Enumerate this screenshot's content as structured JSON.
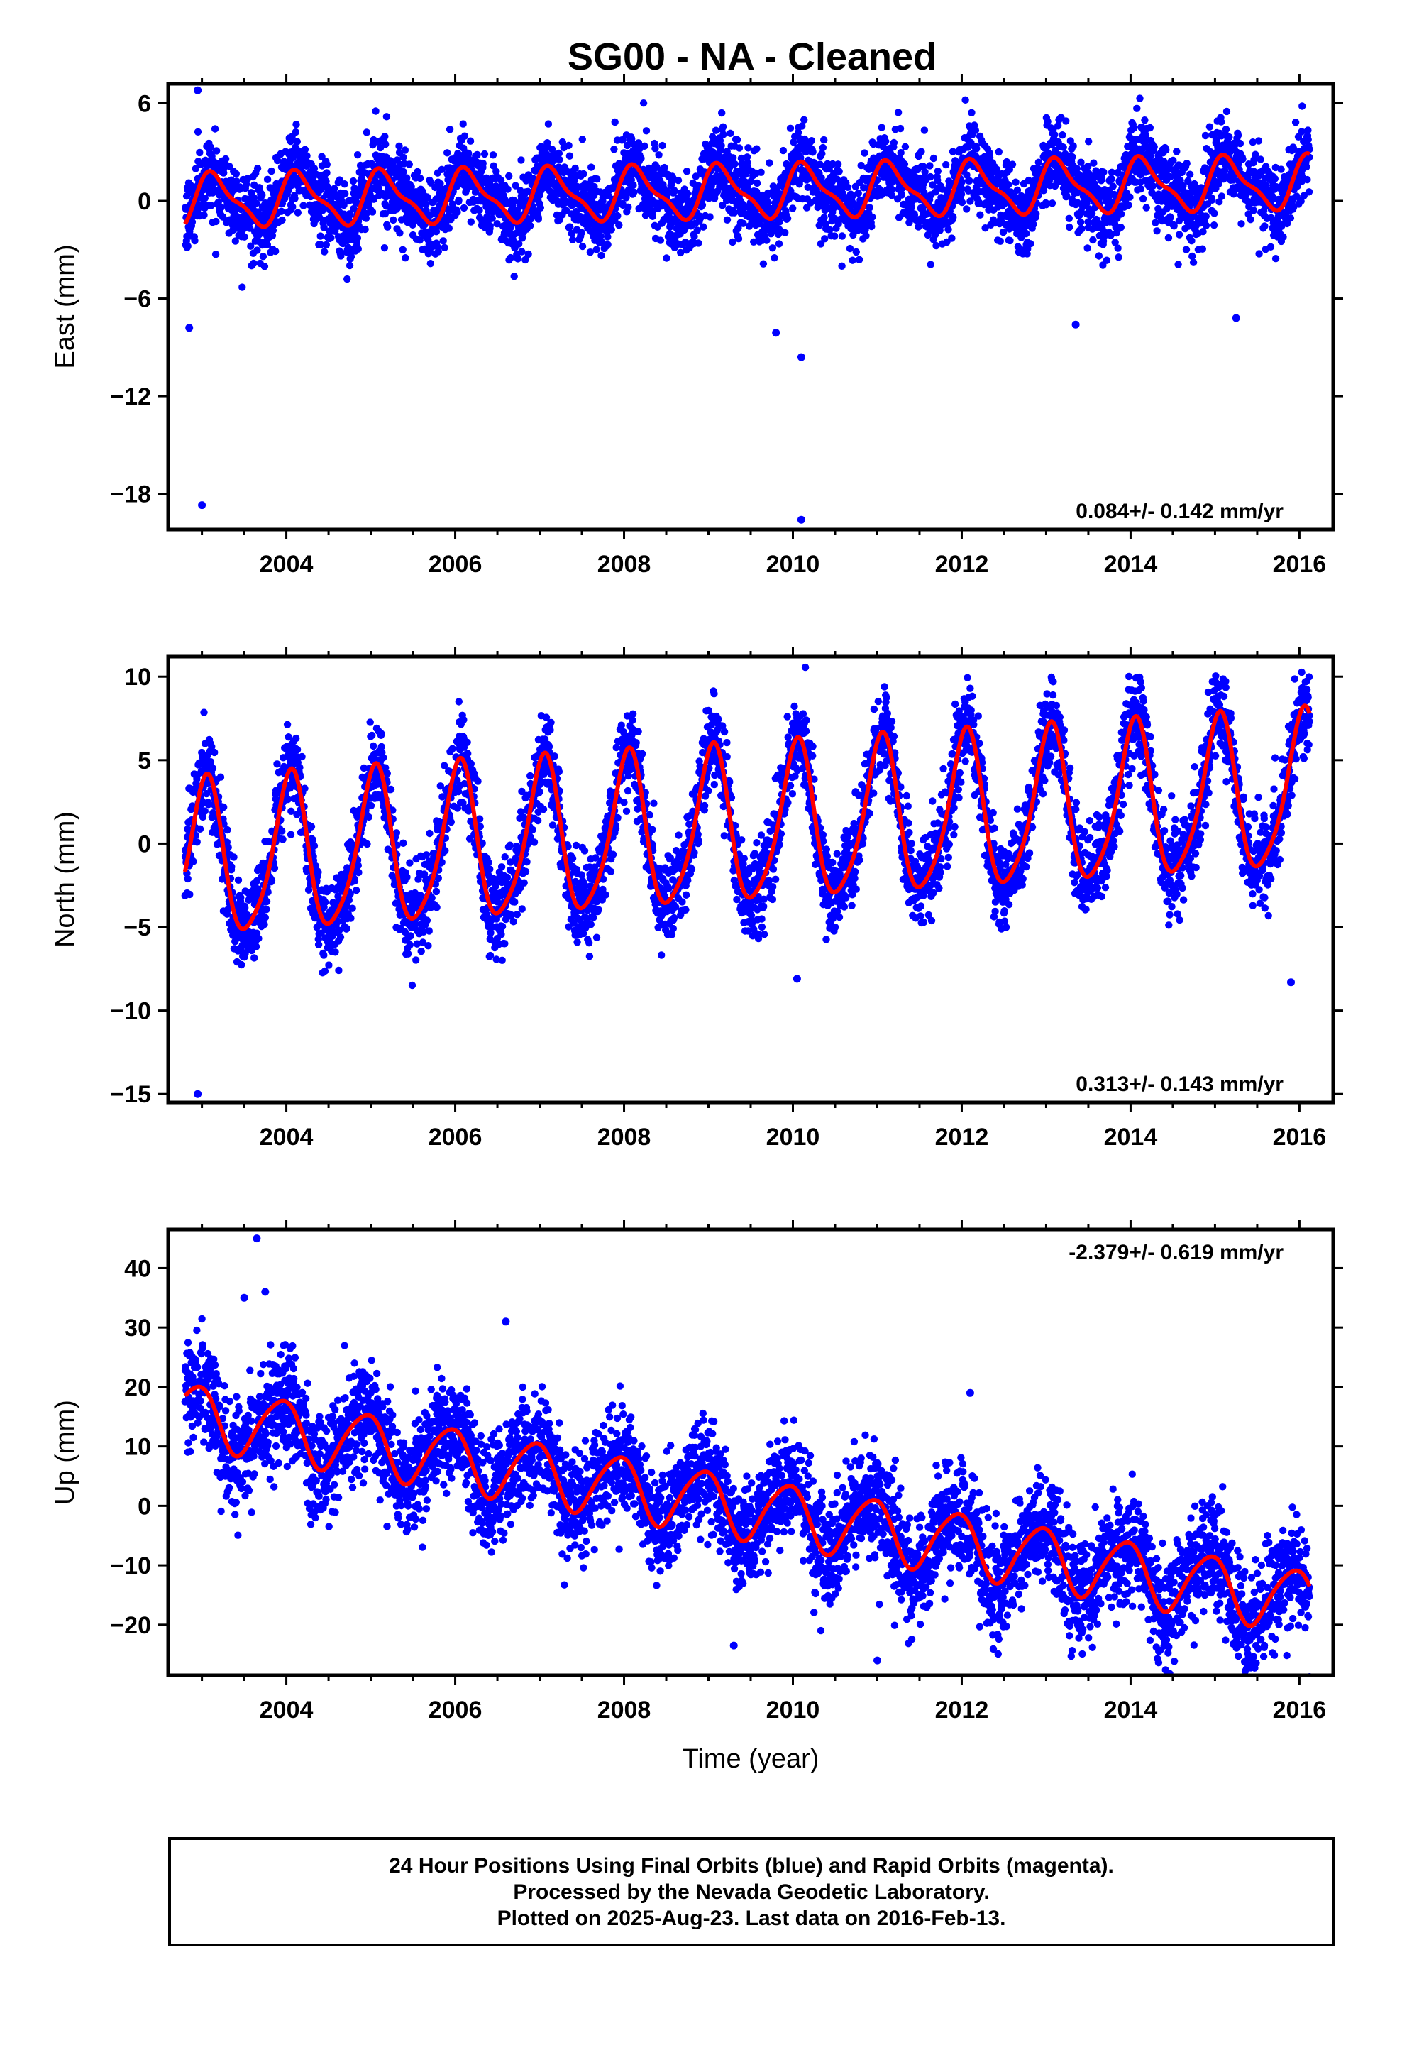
{
  "title": "SG00  - NA - Cleaned",
  "chart_data": [
    {
      "type": "scatter",
      "ylabel": "East (mm)",
      "xlabel": "",
      "xlim": [
        2002.6,
        2016.4
      ],
      "ylim": [
        -20.2,
        7.2
      ],
      "yticks": [
        6,
        0,
        -6,
        -12,
        -18
      ],
      "xticks": [
        2004,
        2006,
        2008,
        2010,
        2012,
        2014,
        2016
      ],
      "rate": "0.084+/- 0.142 mm/yr",
      "rate_position": "bottom-right",
      "series": [
        {
          "kind": "points",
          "color": "#0000ff",
          "start": 2002.8,
          "end": 2016.12,
          "mean0": 0,
          "trend": 0.084,
          "annual_amp": 1.5,
          "annual_phase": 0.6,
          "semi_amp": 0.5,
          "semi_phase": 1.0,
          "noise": 1.2
        },
        {
          "kind": "fit",
          "color": "#ff0000",
          "start": 2002.8,
          "end": 2016.12,
          "mean0": 0,
          "trend": 0.084,
          "annual_amp": 1.5,
          "annual_phase": 0.6,
          "semi_amp": 0.5,
          "semi_phase": 1.0
        }
      ],
      "outliers": [
        [
          2002.85,
          -7.8
        ],
        [
          2002.95,
          6.8
        ],
        [
          2003.0,
          -18.7
        ],
        [
          2009.8,
          -8.1
        ],
        [
          2010.1,
          -9.6
        ],
        [
          2010.1,
          -19.6
        ],
        [
          2013.35,
          -7.6
        ],
        [
          2015.25,
          -7.2
        ]
      ]
    },
    {
      "type": "scatter",
      "ylabel": "North (mm)",
      "xlabel": "",
      "xlim": [
        2002.6,
        2016.4
      ],
      "ylim": [
        -15.5,
        11.2
      ],
      "yticks": [
        10,
        5,
        0,
        -5,
        -10,
        -15
      ],
      "xticks": [
        2004,
        2006,
        2008,
        2010,
        2012,
        2014,
        2016
      ],
      "rate": "0.313+/- 0.143 mm/yr",
      "rate_position": "bottom-right",
      "series": [
        {
          "kind": "points",
          "color": "#0000ff",
          "start": 2002.8,
          "end": 2016.12,
          "mean0": -1.2,
          "trend": 0.313,
          "annual_amp": 4.6,
          "annual_phase": 1.3,
          "semi_amp": 0.8,
          "semi_phase": 0.4,
          "noise": 1.3
        },
        {
          "kind": "fit",
          "color": "#ff0000",
          "start": 2002.8,
          "end": 2016.12,
          "mean0": -1.2,
          "trend": 0.313,
          "annual_amp": 4.6,
          "annual_phase": 1.3,
          "semi_amp": 0.8,
          "semi_phase": 0.4
        }
      ],
      "outliers": [
        [
          2002.85,
          3.3
        ],
        [
          2002.95,
          -15.0
        ],
        [
          2010.0,
          7.2
        ],
        [
          2010.05,
          -8.1
        ],
        [
          2015.9,
          -8.3
        ]
      ]
    },
    {
      "type": "scatter",
      "ylabel": "Up (mm)",
      "xlabel": "Time (year)",
      "xlim": [
        2002.6,
        2016.4
      ],
      "ylim": [
        -28.5,
        46.5
      ],
      "yticks": [
        40,
        30,
        20,
        10,
        0,
        -10,
        -20
      ],
      "xticks": [
        2004,
        2006,
        2008,
        2010,
        2012,
        2014,
        2016
      ],
      "rate": "-2.379+/- 0.619 mm/yr",
      "rate_position": "top-right",
      "series": [
        {
          "kind": "points",
          "color": "#0000ff",
          "start": 2002.8,
          "end": 2016.12,
          "mean0": 15.5,
          "trend": -2.379,
          "annual_amp": 5.2,
          "annual_phase": 2.0,
          "semi_amp": 0.7,
          "semi_phase": 0.2,
          "noise": 4.5
        },
        {
          "kind": "fit",
          "color": "#ff0000",
          "start": 2002.8,
          "end": 2016.12,
          "mean0": 15.5,
          "trend": -2.379,
          "annual_amp": 5.2,
          "annual_phase": 2.0,
          "semi_amp": 0.7,
          "semi_phase": 0.2
        }
      ],
      "outliers": [
        [
          2003.65,
          45.0
        ],
        [
          2003.5,
          35.0
        ],
        [
          2003.75,
          36.0
        ],
        [
          2006.6,
          31.0
        ],
        [
          2009.3,
          -23.5
        ],
        [
          2011.0,
          -26.0
        ],
        [
          2012.1,
          19.0
        ],
        [
          2015.4,
          -25.5
        ]
      ]
    }
  ],
  "footer": {
    "line1": "24 Hour Positions Using Final Orbits (blue) and Rapid Orbits (magenta).",
    "line2": "Processed by the Nevada Geodetic Laboratory.",
    "line3": "Plotted on 2025-Aug-23. Last data on 2016-Feb-13."
  }
}
